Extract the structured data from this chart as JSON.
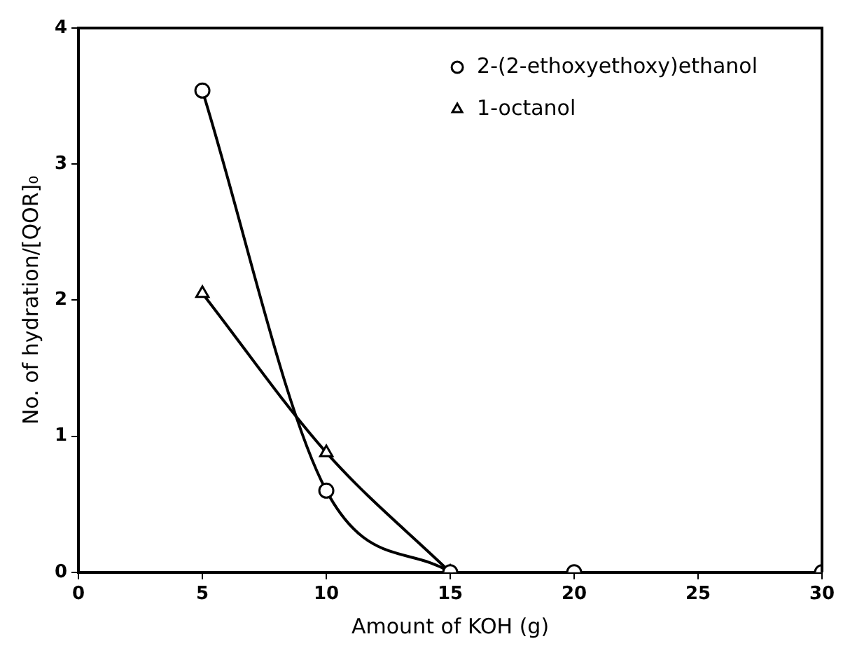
{
  "chart_data": {
    "type": "line",
    "xlabel": "Amount of KOH (g)",
    "ylabel": "No. of hydration/[QOR]₀",
    "xlim": [
      0,
      30
    ],
    "xticks": [
      0,
      5,
      10,
      15,
      20,
      25,
      30
    ],
    "ylim": [
      0,
      4
    ],
    "yticks": [
      0,
      1,
      2,
      3,
      4
    ],
    "grid": false,
    "legend": "top right",
    "series": [
      {
        "name": "2-(2-ethoxyethoxy)ethanol",
        "color": "#000000",
        "marker": "circle",
        "x": [
          5,
          10,
          15
        ],
        "values": [
          3.54,
          0.6,
          0
        ]
      },
      {
        "name": "1-octanol",
        "color": "#000000",
        "marker": "triangle",
        "x": [
          5,
          10,
          15
        ],
        "values": [
          2.05,
          0.88,
          0
        ]
      },
      {
        "type": "scatter",
        "color": "#000000",
        "marker": "circle",
        "x": [
          20,
          30
        ],
        "values": [
          0,
          0
        ]
      }
    ]
  }
}
